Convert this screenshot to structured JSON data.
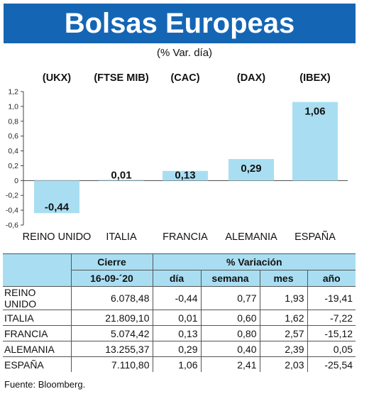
{
  "title": "Bolsas Europeas",
  "subtitle": "(% Var. día)",
  "colors": {
    "title_bg": "#1565b5",
    "bar": "#a9def2",
    "table_header": "#a9def2"
  },
  "chart_data": {
    "type": "bar",
    "categories": [
      "REINO UNIDO",
      "ITALIA",
      "FRANCIA",
      "ALEMANIA",
      "ESPAÑA"
    ],
    "index_labels": [
      "(UKX)",
      "(FTSE MIB)",
      "(CAC)",
      "(DAX)",
      "(IBEX)"
    ],
    "values": [
      -0.44,
      0.01,
      0.13,
      0.29,
      1.06
    ],
    "value_labels": [
      "-0,44",
      "0,01",
      "0,13",
      "0,29",
      "1,06"
    ],
    "y_ticks": [
      "1,2",
      "1,0",
      "0,8",
      "0,6",
      "0,4",
      "0,2",
      "0",
      "-0,2",
      "-0,4",
      "-0,6"
    ],
    "ylim": [
      -0.6,
      1.2
    ],
    "grid": false
  },
  "table": {
    "header_cierre": "Cierre",
    "header_variacion": "% Variación",
    "header_date": "16-09-´20",
    "header_cols": [
      "día",
      "semana",
      "mes",
      "año"
    ],
    "rows": [
      {
        "name": "REINO UNIDO",
        "cierre": "6.078,48",
        "dia": "-0,44",
        "semana": "0,77",
        "mes": "1,93",
        "anio": "-19,41"
      },
      {
        "name": "ITALIA",
        "cierre": "21.809,10",
        "dia": "0,01",
        "semana": "0,60",
        "mes": "1,62",
        "anio": "-7,22"
      },
      {
        "name": "FRANCIA",
        "cierre": "5.074,42",
        "dia": "0,13",
        "semana": "0,80",
        "mes": "2,57",
        "anio": "-15,12"
      },
      {
        "name": "ALEMANIA",
        "cierre": "13.255,37",
        "dia": "0,29",
        "semana": "0,40",
        "mes": "2,39",
        "anio": "0,05"
      },
      {
        "name": "ESPAÑA",
        "cierre": "7.110,80",
        "dia": "1,06",
        "semana": "2,41",
        "mes": "2,03",
        "anio": "-25,54"
      }
    ]
  },
  "source": "Fuente: Bloomberg."
}
